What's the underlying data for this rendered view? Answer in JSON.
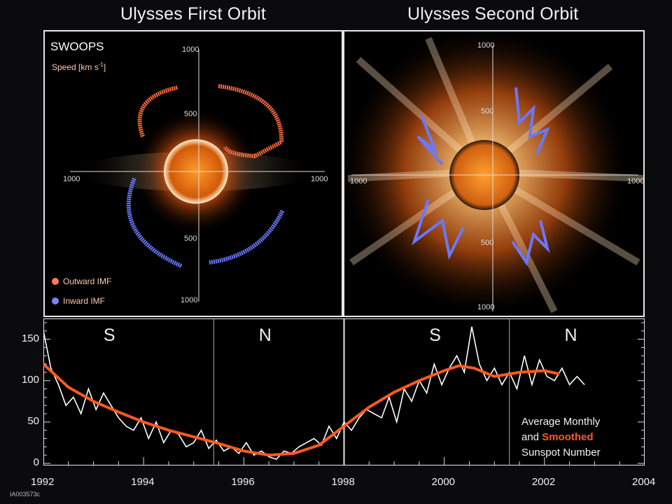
{
  "titles": {
    "first_orbit": "Ulysses First Orbit",
    "second_orbit": "Ulysses Second Orbit"
  },
  "panel_text": {
    "instrument": "SWOOPS",
    "speed_label": "Speed [km s",
    "speed_exp": "-1",
    "speed_close": "]",
    "legend_outward": "Outward IMF",
    "legend_inward": "Inward IMF",
    "ticks_first": [
      "1000",
      "500",
      "500",
      "1000",
      "1000",
      "1000"
    ],
    "ticks_second": [
      "1000",
      "500",
      "500",
      "1000",
      "1000",
      "1000"
    ]
  },
  "colors": {
    "outward": "#ff6a3c",
    "inward": "#6a78ff",
    "smoothed": "#ff5a1f",
    "monthly": "#ffffff",
    "sun": "#ff8a1a"
  },
  "chart_data": {
    "type": "line",
    "xlim": [
      1992,
      2004
    ],
    "ylim": [
      0,
      175
    ],
    "x_ticks": [
      "1992",
      "1994",
      "1996",
      "1998",
      "2000",
      "2002",
      "2004"
    ],
    "y_ticks": [
      "0",
      "50",
      "100",
      "150"
    ],
    "hemisphere_labels": [
      {
        "label": "S",
        "x": 1993.2
      },
      {
        "label": "N",
        "x": 1996.3
      },
      {
        "label": "S",
        "x": 1999.7
      },
      {
        "label": "N",
        "x": 2002.4
      }
    ],
    "orbit_dividers": [
      1995.4,
      1998.0,
      2001.3
    ],
    "annotation": {
      "line1": "Average Monthly",
      "line2a": "and ",
      "line2b": "Smoothed",
      "line3": "Sunspot Number"
    },
    "series": [
      {
        "x": [
          1992.0,
          1992.15,
          1992.3,
          1992.45,
          1992.6,
          1992.75,
          1992.9,
          1993.05,
          1993.2,
          1993.35,
          1993.5,
          1993.65,
          1993.8,
          1993.95,
          1994.1,
          1994.25,
          1994.4,
          1994.55,
          1994.7,
          1994.85,
          1995.0,
          1995.15,
          1995.3,
          1995.45,
          1995.6,
          1995.75,
          1995.9,
          1996.05,
          1996.2,
          1996.35,
          1996.5,
          1996.65,
          1996.8,
          1996.95,
          1997.1,
          1997.25,
          1997.4,
          1997.55,
          1997.7,
          1997.85,
          1998.0,
          1998.15,
          1998.3,
          1998.45,
          1998.6,
          1998.75,
          1998.9,
          1999.05,
          1999.2,
          1999.35,
          1999.5,
          1999.65,
          1999.8,
          1999.95,
          2000.1,
          2000.25,
          2000.4,
          2000.55,
          2000.7,
          2000.85,
          2001.0,
          2001.15,
          2001.3,
          2001.45,
          2001.6,
          2001.75,
          2001.9,
          2002.05,
          2002.2,
          2002.35,
          2002.5,
          2002.65,
          2002.8
        ],
        "values": [
          160,
          115,
          95,
          70,
          80,
          60,
          90,
          65,
          85,
          70,
          55,
          45,
          40,
          55,
          30,
          50,
          25,
          40,
          35,
          20,
          25,
          40,
          18,
          28,
          15,
          20,
          12,
          25,
          10,
          15,
          8,
          5,
          15,
          12,
          20,
          25,
          30,
          22,
          45,
          30,
          50,
          40,
          55,
          65,
          60,
          55,
          80,
          50,
          90,
          75,
          100,
          85,
          120,
          95,
          115,
          130,
          110,
          165,
          120,
          100,
          115,
          95,
          110,
          90,
          130,
          95,
          125,
          105,
          100,
          115,
          95,
          105,
          95
        ]
      },
      {
        "x": [
          1992.0,
          1992.5,
          1993.0,
          1993.5,
          1994.0,
          1994.5,
          1995.0,
          1995.5,
          1996.0,
          1996.5,
          1997.0,
          1997.5,
          1998.0,
          1998.5,
          1999.0,
          1999.5,
          2000.0,
          2000.3,
          2000.6,
          2001.0,
          2001.5,
          2002.0,
          2002.3
        ],
        "values": [
          120,
          92,
          75,
          62,
          50,
          40,
          32,
          24,
          15,
          10,
          12,
          22,
          45,
          68,
          86,
          100,
          112,
          118,
          115,
          105,
          110,
          112,
          108
        ]
      }
    ]
  }
}
